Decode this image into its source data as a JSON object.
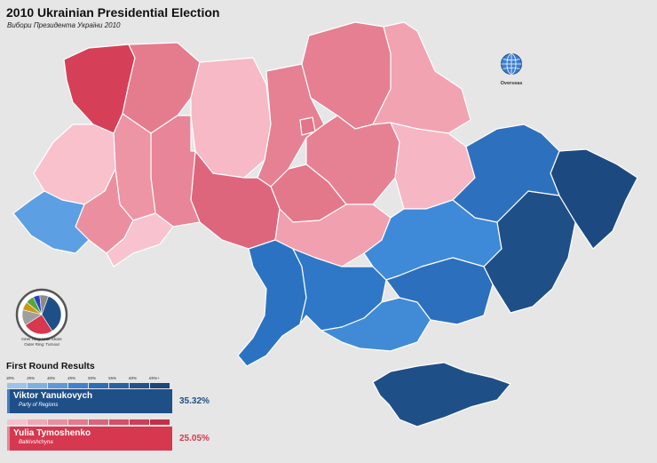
{
  "header": {
    "title": "2010 Ukrainian Presidential Election",
    "subtitle": "Вибори Президента України 2010"
  },
  "overseas": {
    "label": "Overseas",
    "icon": "globe-icon",
    "color": "#3d7fd1"
  },
  "pie": {
    "caption_line1": "Inner Ring: Vote Share",
    "caption_line2": "Outer Ring: Turnout",
    "slices": [
      {
        "value": 35.32,
        "color": "#1f4f87"
      },
      {
        "value": 25.05,
        "color": "#d6384f"
      },
      {
        "value": 13.05,
        "color": "#9f9f9f"
      },
      {
        "value": 6.96,
        "color": "#c89a15"
      },
      {
        "value": 6.96,
        "color": "#5aa53c"
      },
      {
        "value": 5.45,
        "color": "#2340c8"
      },
      {
        "value": 7.21,
        "color": "#8b8b8b"
      }
    ]
  },
  "results": {
    "title": "First Round Results",
    "scale": [
      "30%",
      "35%",
      "40%",
      "45%",
      "50%",
      "55%",
      "60%",
      "65%+"
    ],
    "candidates": [
      {
        "name": "Viktor Yanukovych",
        "party": "Party of Regions",
        "percent": "35.32%",
        "color": "#1f4f87",
        "accent": "#3d7fd1",
        "band": [
          "#9cc3ea",
          "#7fb0e2",
          "#5e98d8",
          "#3f81cc",
          "#2c6db8",
          "#2860a4",
          "#22528d",
          "#1c4678"
        ]
      },
      {
        "name": "Yulia Tymoshenko",
        "party": "Batkivshchyna",
        "percent": "25.05%",
        "color": "#d6384f",
        "accent": "#e2889a",
        "band": [
          "#f7c2cc",
          "#f0a8b6",
          "#e98fa1",
          "#e37a8d",
          "#dc6479",
          "#d64f67",
          "#d03d56",
          "#c72f48"
        ]
      }
    ]
  }
}
